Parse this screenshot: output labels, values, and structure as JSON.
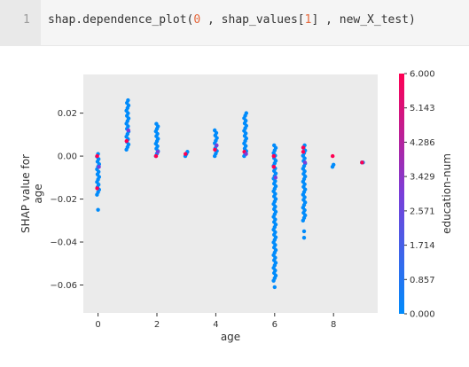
{
  "code_cell": {
    "line_number": "1",
    "tokens": [
      {
        "text": "shap.dependence_plot(",
        "kind": "plain"
      },
      {
        "text": "0",
        "kind": "num"
      },
      {
        "text": " , shap_values[",
        "kind": "plain"
      },
      {
        "text": "1",
        "kind": "num"
      },
      {
        "text": "] , new_X_test)",
        "kind": "plain"
      }
    ]
  },
  "colors": {
    "low": "#008bfb",
    "mid": "#7a3ed9",
    "high": "#ff0052"
  },
  "chart_data": {
    "type": "scatter",
    "title": "",
    "xlabel": "age",
    "ylabel": "SHAP value for\nage",
    "xlim": [
      -0.5,
      9.5
    ],
    "ylim": [
      -0.073,
      0.038
    ],
    "x_ticks": [
      "0",
      "2",
      "4",
      "6",
      "8"
    ],
    "y_ticks": [
      "0.02",
      "0.00",
      "−0.02",
      "−0.04",
      "−0.06"
    ],
    "grid": false,
    "background": "#ebebeb",
    "colorbar": {
      "label": "education-num",
      "ticks": [
        "6.000",
        "5.143",
        "4.286",
        "3.429",
        "2.571",
        "1.714",
        "0.857",
        "0.000"
      ],
      "range": [
        0,
        6
      ]
    },
    "groups": [
      {
        "x": 0,
        "y_min": -0.018,
        "y_max": 0.001,
        "high_y": [
          -0.015,
          -0.005,
          0.0
        ],
        "outliers": [
          -0.025
        ]
      },
      {
        "x": 1,
        "y_min": 0.003,
        "y_max": 0.026,
        "high_y": [
          0.007,
          0.012
        ],
        "outliers": []
      },
      {
        "x": 2,
        "y_min": 0.0,
        "y_max": 0.015,
        "high_y": [
          0.0,
          0.002
        ],
        "outliers": []
      },
      {
        "x": 3,
        "y_min": 0.0,
        "y_max": 0.002,
        "high_y": [
          0.001
        ],
        "outliers": []
      },
      {
        "x": 4,
        "y_min": 0.0,
        "y_max": 0.012,
        "high_y": [
          0.003,
          0.005
        ],
        "outliers": []
      },
      {
        "x": 5,
        "y_min": 0.0,
        "y_max": 0.02,
        "high_y": [
          0.002,
          0.001
        ],
        "outliers": []
      },
      {
        "x": 6,
        "y_min": -0.058,
        "y_max": 0.005,
        "high_y": [
          -0.005,
          -0.01,
          0.0
        ],
        "outliers": [
          -0.061
        ]
      },
      {
        "x": 7,
        "y_min": -0.03,
        "y_max": 0.005,
        "high_y": [
          0.004,
          -0.003,
          0.002
        ],
        "outliers": [
          -0.035,
          -0.038
        ]
      },
      {
        "x": 8,
        "y_min": -0.005,
        "y_max": -0.004,
        "high_y": [
          0.0
        ],
        "outliers": []
      },
      {
        "x": 9,
        "y_min": -0.003,
        "y_max": -0.003,
        "high_y": [
          -0.003
        ],
        "outliers": []
      }
    ]
  }
}
